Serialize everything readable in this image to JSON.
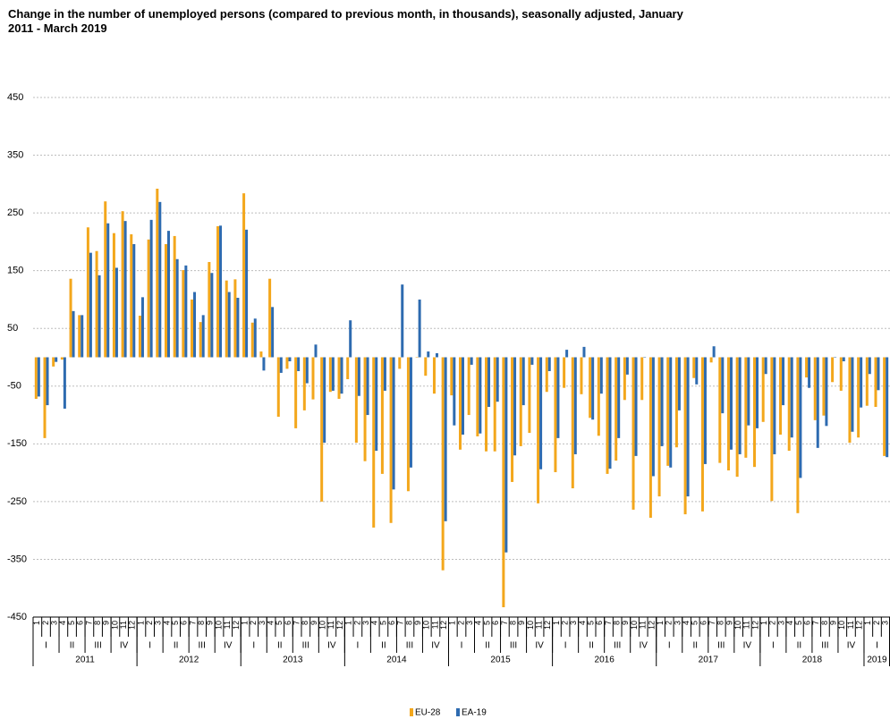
{
  "chart_data": {
    "type": "bar",
    "title": "Change in the number of unemployed persons (compared to previous month, in thousands), seasonally adjusted, January 2011 - March 2019",
    "x_axis": [
      {
        "label": "2011",
        "quarters": [
          {
            "label": "I",
            "months": [
              "1",
              "2",
              "3"
            ]
          },
          {
            "label": "II",
            "months": [
              "4",
              "5",
              "6"
            ]
          },
          {
            "label": "III",
            "months": [
              "7",
              "8",
              "9"
            ]
          },
          {
            "label": "IV",
            "months": [
              "10",
              "11",
              "12"
            ]
          }
        ]
      },
      {
        "label": "2012",
        "quarters": [
          {
            "label": "I",
            "months": [
              "1",
              "2",
              "3"
            ]
          },
          {
            "label": "II",
            "months": [
              "4",
              "5",
              "6"
            ]
          },
          {
            "label": "III",
            "months": [
              "7",
              "8",
              "9"
            ]
          },
          {
            "label": "IV",
            "months": [
              "10",
              "11",
              "12"
            ]
          }
        ]
      },
      {
        "label": "2013",
        "quarters": [
          {
            "label": "I",
            "months": [
              "1",
              "2",
              "3"
            ]
          },
          {
            "label": "II",
            "months": [
              "4",
              "5",
              "6"
            ]
          },
          {
            "label": "III",
            "months": [
              "7",
              "8",
              "9"
            ]
          },
          {
            "label": "IV",
            "months": [
              "10",
              "11",
              "12"
            ]
          }
        ]
      },
      {
        "label": "2014",
        "quarters": [
          {
            "label": "I",
            "months": [
              "1",
              "2",
              "3"
            ]
          },
          {
            "label": "II",
            "months": [
              "4",
              "5",
              "6"
            ]
          },
          {
            "label": "III",
            "months": [
              "7",
              "8",
              "9"
            ]
          },
          {
            "label": "IV",
            "months": [
              "10",
              "11",
              "12"
            ]
          }
        ]
      },
      {
        "label": "2015",
        "quarters": [
          {
            "label": "I",
            "months": [
              "1",
              "2",
              "3"
            ]
          },
          {
            "label": "II",
            "months": [
              "4",
              "5",
              "6"
            ]
          },
          {
            "label": "III",
            "months": [
              "7",
              "8",
              "9"
            ]
          },
          {
            "label": "IV",
            "months": [
              "10",
              "11",
              "12"
            ]
          }
        ]
      },
      {
        "label": "2016",
        "quarters": [
          {
            "label": "I",
            "months": [
              "1",
              "2",
              "3"
            ]
          },
          {
            "label": "II",
            "months": [
              "4",
              "5",
              "6"
            ]
          },
          {
            "label": "III",
            "months": [
              "7",
              "8",
              "9"
            ]
          },
          {
            "label": "IV",
            "months": [
              "10",
              "11",
              "12"
            ]
          }
        ]
      },
      {
        "label": "2017",
        "quarters": [
          {
            "label": "I",
            "months": [
              "1",
              "2",
              "3"
            ]
          },
          {
            "label": "II",
            "months": [
              "4",
              "5",
              "6"
            ]
          },
          {
            "label": "III",
            "months": [
              "7",
              "8",
              "9"
            ]
          },
          {
            "label": "IV",
            "months": [
              "10",
              "11",
              "12"
            ]
          }
        ]
      },
      {
        "label": "2018",
        "quarters": [
          {
            "label": "I",
            "months": [
              "1",
              "2",
              "3"
            ]
          },
          {
            "label": "II",
            "months": [
              "4",
              "5",
              "6"
            ]
          },
          {
            "label": "III",
            "months": [
              "7",
              "8",
              "9"
            ]
          },
          {
            "label": "IV",
            "months": [
              "10",
              "11",
              "12"
            ]
          }
        ]
      },
      {
        "label": "2019",
        "quarters": [
          {
            "label": "I",
            "months": [
              "1",
              "2",
              "3"
            ]
          }
        ]
      }
    ],
    "series": [
      {
        "name": "EU-28",
        "color": "#f3a71c",
        "values": [
          -72,
          -140,
          -16,
          -4,
          136,
          73,
          225,
          184,
          270,
          215,
          253,
          213,
          72,
          204,
          292,
          196,
          210,
          151,
          100,
          61,
          165,
          227,
          133,
          135,
          284,
          60,
          10,
          136,
          -103,
          -20,
          -123,
          -92,
          -73,
          -250,
          -60,
          -72,
          -38,
          -148,
          -180,
          -295,
          -202,
          -287,
          -20,
          -232,
          0,
          -32,
          -63,
          -369,
          -66,
          -160,
          -100,
          -137,
          -163,
          -163,
          -433,
          -216,
          -154,
          -131,
          -253,
          -60,
          -199,
          -53,
          -227,
          -64,
          -105,
          -136,
          -202,
          -179,
          -74,
          -264,
          -74,
          -278,
          -241,
          -188,
          -156,
          -272,
          -36,
          -267,
          -9,
          -183,
          -196,
          -207,
          -174,
          -190,
          -112,
          -249,
          -134,
          -162,
          -270,
          -35,
          -109,
          -101,
          -43,
          -58,
          -148,
          -139,
          -84,
          -86,
          -171
        ]
      },
      {
        "name": "EA-19",
        "color": "#2e6bb0",
        "values": [
          -68,
          -83,
          -8,
          -89,
          80,
          73,
          181,
          142,
          232,
          155,
          236,
          196,
          104,
          238,
          269,
          219,
          170,
          159,
          113,
          73,
          146,
          228,
          113,
          103,
          221,
          67,
          -23,
          87,
          -27,
          -7,
          -24,
          -45,
          22,
          -148,
          -58,
          -63,
          64,
          -67,
          -100,
          -162,
          -58,
          -229,
          126,
          -191,
          100,
          10,
          7,
          -284,
          -118,
          -134,
          -13,
          -132,
          -86,
          -77,
          -338,
          -170,
          -83,
          -13,
          -194,
          -24,
          -140,
          13,
          -168,
          18,
          -108,
          -63,
          -193,
          -140,
          -30,
          -171,
          0,
          -206,
          -154,
          -191,
          -92,
          -241,
          -47,
          -185,
          19,
          -97,
          -160,
          -168,
          -118,
          -123,
          -29,
          -168,
          -83,
          -139,
          -209,
          -53,
          -157,
          -119,
          0,
          -7,
          -129,
          -87,
          -29,
          -57,
          -173
        ]
      }
    ],
    "ylim": [
      -450,
      450
    ],
    "yticks": [
      450,
      350,
      250,
      150,
      50,
      -50,
      -150,
      -250,
      -350,
      -450
    ],
    "grid": true,
    "legend": "bottom"
  }
}
